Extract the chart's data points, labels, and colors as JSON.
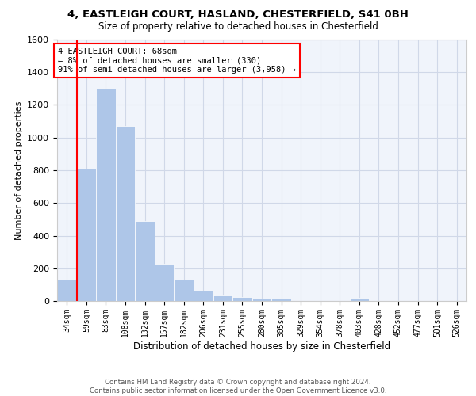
{
  "title1": "4, EASTLEIGH COURT, HASLAND, CHESTERFIELD, S41 0BH",
  "title2": "Size of property relative to detached houses in Chesterfield",
  "xlabel": "Distribution of detached houses by size in Chesterfield",
  "ylabel": "Number of detached properties",
  "categories": [
    "34sqm",
    "59sqm",
    "83sqm",
    "108sqm",
    "132sqm",
    "157sqm",
    "182sqm",
    "206sqm",
    "231sqm",
    "255sqm",
    "280sqm",
    "305sqm",
    "329sqm",
    "354sqm",
    "378sqm",
    "403sqm",
    "428sqm",
    "452sqm",
    "477sqm",
    "501sqm",
    "526sqm"
  ],
  "values": [
    130,
    810,
    1300,
    1070,
    490,
    230,
    130,
    65,
    35,
    25,
    15,
    15,
    0,
    0,
    0,
    20,
    0,
    0,
    0,
    0,
    0
  ],
  "bar_color": "#aec6e8",
  "bar_edge_color": "#aec6e8",
  "vline_color": "red",
  "vline_x_index": 1,
  "annotation_text": "4 EASTLEIGH COURT: 68sqm\n← 8% of detached houses are smaller (330)\n91% of semi-detached houses are larger (3,958) →",
  "annotation_box_color": "white",
  "annotation_box_edge_color": "red",
  "ylim": [
    0,
    1600
  ],
  "yticks": [
    0,
    200,
    400,
    600,
    800,
    1000,
    1200,
    1400,
    1600
  ],
  "grid_color": "#d0d8e8",
  "background_color": "#f0f4fb",
  "footer1": "Contains HM Land Registry data © Crown copyright and database right 2024.",
  "footer2": "Contains public sector information licensed under the Open Government Licence v3.0."
}
